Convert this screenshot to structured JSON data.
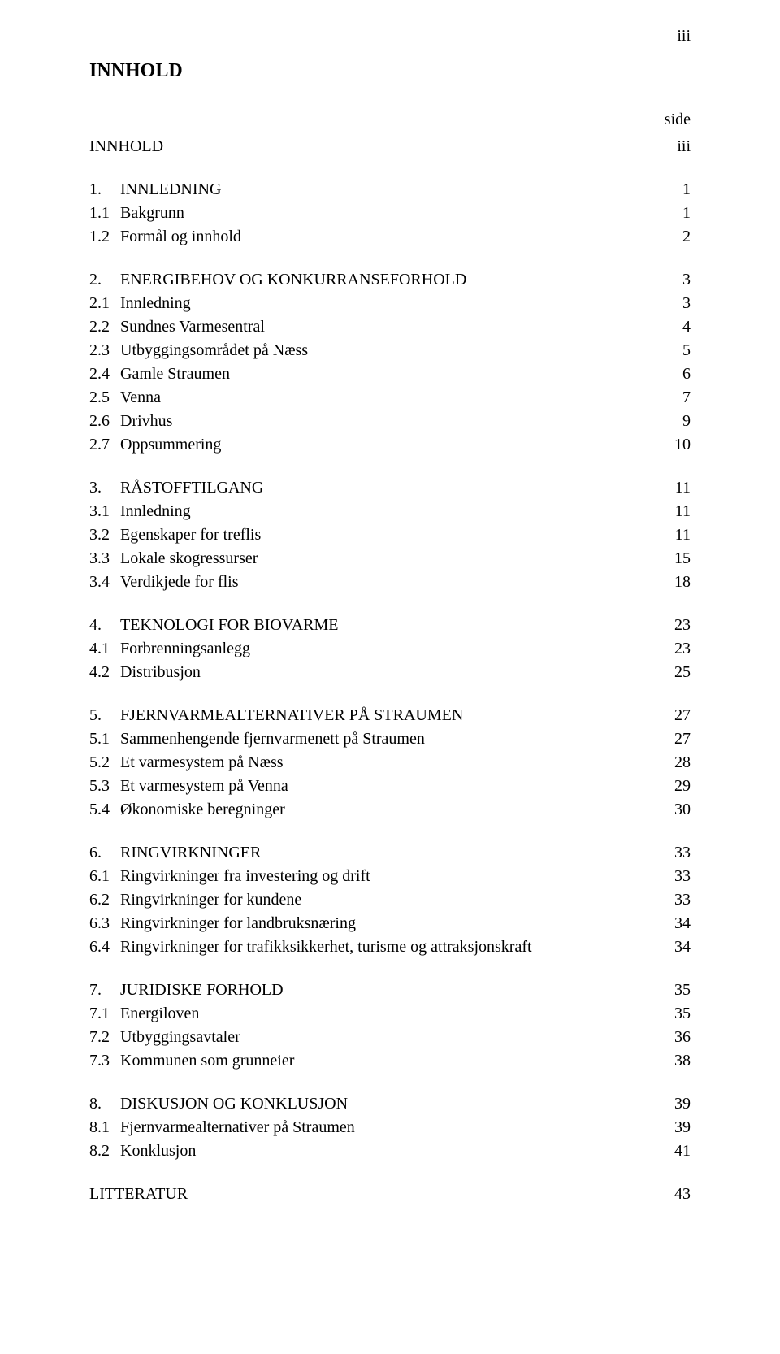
{
  "page_number_top": "iii",
  "main_title": "INNHOLD",
  "side_label": "side",
  "footer": {
    "label": "LITTERATUR",
    "page": "43"
  },
  "groups": [
    {
      "rows": [
        {
          "num": "",
          "label": "INNHOLD",
          "page": "iii"
        }
      ]
    },
    {
      "rows": [
        {
          "num": "1.",
          "label": "INNLEDNING",
          "page": "1"
        },
        {
          "num": "1.1",
          "label": "Bakgrunn",
          "page": "1"
        },
        {
          "num": "1.2",
          "label": "Formål og innhold",
          "page": "2"
        }
      ]
    },
    {
      "rows": [
        {
          "num": "2.",
          "label": "ENERGIBEHOV OG KONKURRANSEFORHOLD",
          "page": "3"
        },
        {
          "num": "2.1",
          "label": "Innledning",
          "page": "3"
        },
        {
          "num": "2.2",
          "label": "Sundnes Varmesentral",
          "page": "4"
        },
        {
          "num": "2.3",
          "label": "Utbyggingsområdet på Næss",
          "page": "5"
        },
        {
          "num": "2.4",
          "label": "Gamle Straumen",
          "page": "6"
        },
        {
          "num": "2.5",
          "label": "Venna",
          "page": "7"
        },
        {
          "num": "2.6",
          "label": "Drivhus",
          "page": "9"
        },
        {
          "num": "2.7",
          "label": "Oppsummering",
          "page": "10"
        }
      ]
    },
    {
      "rows": [
        {
          "num": "3.",
          "label": "RÅSTOFFTILGANG",
          "page": "11"
        },
        {
          "num": "3.1",
          "label": "Innledning",
          "page": "11"
        },
        {
          "num": "3.2",
          "label": "Egenskaper for treflis",
          "page": "11"
        },
        {
          "num": "3.3",
          "label": "Lokale skogressurser",
          "page": "15"
        },
        {
          "num": "3.4",
          "label": "Verdikjede for flis",
          "page": "18"
        }
      ]
    },
    {
      "rows": [
        {
          "num": "4.",
          "label": "TEKNOLOGI FOR BIOVARME",
          "page": "23"
        },
        {
          "num": "4.1",
          "label": "Forbrenningsanlegg",
          "page": "23"
        },
        {
          "num": "4.2",
          "label": "Distribusjon",
          "page": "25"
        }
      ]
    },
    {
      "rows": [
        {
          "num": "5.",
          "label": "FJERNVARMEALTERNATIVER PÅ STRAUMEN",
          "page": "27"
        },
        {
          "num": "5.1",
          "label": "Sammenhengende fjernvarmenett på Straumen",
          "page": "27"
        },
        {
          "num": "5.2",
          "label": "Et varmesystem på Næss",
          "page": "28"
        },
        {
          "num": "5.3",
          "label": "Et varmesystem på Venna",
          "page": "29"
        },
        {
          "num": "5.4",
          "label": "Økonomiske beregninger",
          "page": "30"
        }
      ]
    },
    {
      "rows": [
        {
          "num": "6.",
          "label": "RINGVIRKNINGER",
          "page": "33"
        },
        {
          "num": "6.1",
          "label": "Ringvirkninger fra investering og drift",
          "page": "33"
        },
        {
          "num": "6.2",
          "label": "Ringvirkninger for kundene",
          "page": "33"
        },
        {
          "num": "6.3",
          "label": "Ringvirkninger for landbruksnæring",
          "page": "34"
        },
        {
          "num": "6.4",
          "label": "Ringvirkninger for trafikksikkerhet, turisme og attraksjonskraft",
          "page": "34"
        }
      ]
    },
    {
      "rows": [
        {
          "num": "7.",
          "label": "JURIDISKE FORHOLD",
          "page": "35"
        },
        {
          "num": "7.1",
          "label": "Energiloven",
          "page": "35"
        },
        {
          "num": "7.2",
          "label": "Utbyggingsavtaler",
          "page": "36"
        },
        {
          "num": "7.3",
          "label": "Kommunen som grunneier",
          "page": "38"
        }
      ]
    },
    {
      "rows": [
        {
          "num": "8.",
          "label": "DISKUSJON OG KONKLUSJON",
          "page": "39"
        },
        {
          "num": "8.1",
          "label": "Fjernvarmealternativer på Straumen",
          "page": "39"
        },
        {
          "num": "8.2",
          "label": "Konklusjon",
          "page": "41"
        }
      ]
    }
  ]
}
